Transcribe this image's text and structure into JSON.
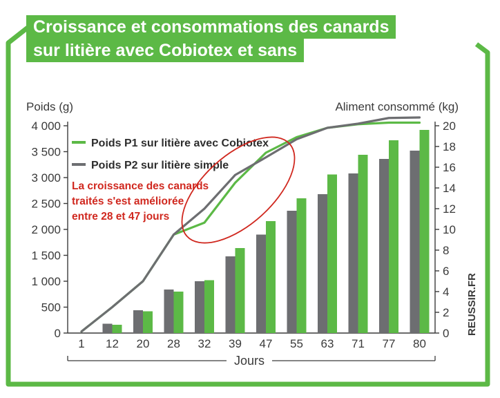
{
  "chart_data": {
    "type": "bar",
    "title": "Croissance et consommations des canards sur litière avec Cobiotex et sans",
    "title_lines": [
      "Croissance et consommations des canards",
      "sur litière avec Cobiotex et sans"
    ],
    "xlabel": "Jours",
    "ylabel_left": "Poids (g)",
    "ylabel_right": "Aliment consommé (kg)",
    "ylim_left": [
      0,
      4000
    ],
    "ylim_right": [
      0,
      20
    ],
    "yticks_left": [
      "0",
      "500",
      "1 000",
      "1 500",
      "2 000",
      "2 500",
      "3 000",
      "3 500",
      "4 000"
    ],
    "yticks_right": [
      "0",
      "2",
      "4",
      "6",
      "8",
      "10",
      "12",
      "14",
      "16",
      "18",
      "20"
    ],
    "categories": [
      "1",
      "12",
      "20",
      "28",
      "32",
      "39",
      "47",
      "55",
      "63",
      "71",
      "77",
      "80"
    ],
    "series": [
      {
        "name": "Poids P1 sur litière avec Cobiotex",
        "kind": "line",
        "axis": "left",
        "color": "#5cb946",
        "values": [
          30,
          500,
          1000,
          1900,
          2130,
          2900,
          3480,
          3780,
          3960,
          4030,
          4060,
          4060
        ]
      },
      {
        "name": "Poids P2 sur litière simple",
        "kind": "line",
        "axis": "left",
        "color": "#6d6e71",
        "values": [
          30,
          500,
          1000,
          1900,
          2400,
          3050,
          3390,
          3740,
          3960,
          4040,
          4150,
          4160
        ]
      },
      {
        "kind": "bar",
        "axis": "right",
        "color": "#6d6e71",
        "values": [
          null,
          0.9,
          2.2,
          4.2,
          5.0,
          7.4,
          9.5,
          11.8,
          13.4,
          15.4,
          16.8,
          17.6
        ]
      },
      {
        "kind": "bar",
        "axis": "right",
        "color": "#5cb946",
        "values": [
          null,
          0.8,
          2.1,
          4.0,
          5.1,
          8.2,
          10.8,
          13.0,
          15.3,
          17.2,
          18.6,
          19.6
        ]
      }
    ],
    "annotation": {
      "lines": [
        "La croissance des canards",
        "traités s'est améliorée",
        "entre 28 et 47 jours"
      ],
      "color": "#d0281f"
    },
    "watermark": "REUSSIR.FR",
    "grid": false,
    "legend_position": "top-left"
  },
  "colors": {
    "green": "#5cb946",
    "gray": "#6d6e71",
    "red": "#d0281f",
    "text": "#3a3a3a"
  }
}
